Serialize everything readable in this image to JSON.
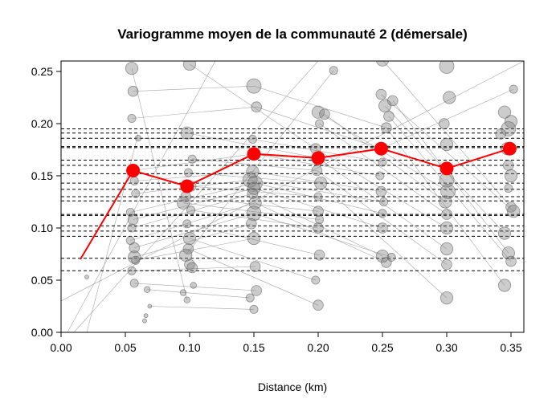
{
  "chart_data": {
    "type": "scatter",
    "title": "Variogramme moyen de la communauté 2 (démersale)",
    "xlabel": "Distance (km)",
    "ylabel": "",
    "xlim": [
      0.0,
      0.36
    ],
    "ylim": [
      0.0,
      0.26
    ],
    "x_ticks": [
      {
        "value": 0.0,
        "label": "0.00"
      },
      {
        "value": 0.05,
        "label": "0.05"
      },
      {
        "value": 0.1,
        "label": "0.10"
      },
      {
        "value": 0.15,
        "label": "0.15"
      },
      {
        "value": 0.2,
        "label": "0.20"
      },
      {
        "value": 0.25,
        "label": "0.25"
      },
      {
        "value": 0.3,
        "label": "0.30"
      },
      {
        "value": 0.35,
        "label": "0.35"
      }
    ],
    "y_ticks": [
      {
        "value": 0.0,
        "label": "0.00"
      },
      {
        "value": 0.05,
        "label": "0.05"
      },
      {
        "value": 0.1,
        "label": "0.10"
      },
      {
        "value": 0.15,
        "label": "0.15"
      },
      {
        "value": 0.2,
        "label": "0.20"
      },
      {
        "value": 0.25,
        "label": "0.25"
      }
    ],
    "colors": {
      "mean": "#ff0000",
      "points": "#808080",
      "lines": "#909090",
      "sills": "#000000"
    },
    "mean_variogram": {
      "name": "",
      "x": [
        0.015,
        0.056,
        0.098,
        0.15,
        0.2,
        0.249,
        0.3,
        0.349
      ],
      "y": [
        0.07,
        0.155,
        0.14,
        0.171,
        0.167,
        0.176,
        0.157,
        0.176
      ],
      "marker_sizes": [
        0,
        1,
        1,
        1,
        1,
        1,
        1,
        1
      ]
    },
    "sill_lines": [
      0.195,
      0.191,
      0.186,
      0.178,
      0.177,
      0.165,
      0.16,
      0.152,
      0.143,
      0.137,
      0.13,
      0.126,
      0.113,
      0.112,
      0.102,
      0.097,
      0.092,
      0.071,
      0.059
    ],
    "species_points": [
      {
        "x": 0.055,
        "y": 0.253,
        "s": 5
      },
      {
        "x": 0.056,
        "y": 0.231,
        "s": 4
      },
      {
        "x": 0.055,
        "y": 0.205,
        "s": 3
      },
      {
        "x": 0.06,
        "y": 0.186,
        "s": 2
      },
      {
        "x": 0.056,
        "y": 0.155,
        "s": 5
      },
      {
        "x": 0.057,
        "y": 0.145,
        "s": 3
      },
      {
        "x": 0.058,
        "y": 0.133,
        "s": 3
      },
      {
        "x": 0.054,
        "y": 0.115,
        "s": 3
      },
      {
        "x": 0.056,
        "y": 0.108,
        "s": 4
      },
      {
        "x": 0.055,
        "y": 0.1,
        "s": 3
      },
      {
        "x": 0.054,
        "y": 0.088,
        "s": 3
      },
      {
        "x": 0.057,
        "y": 0.081,
        "s": 4
      },
      {
        "x": 0.057,
        "y": 0.072,
        "s": 5
      },
      {
        "x": 0.058,
        "y": 0.069,
        "s": 3
      },
      {
        "x": 0.055,
        "y": 0.059,
        "s": 3
      },
      {
        "x": 0.057,
        "y": 0.047,
        "s": 3
      },
      {
        "x": 0.067,
        "y": 0.041,
        "s": 2
      },
      {
        "x": 0.069,
        "y": 0.025,
        "s": 1
      },
      {
        "x": 0.066,
        "y": 0.016,
        "s": 1
      },
      {
        "x": 0.065,
        "y": 0.011,
        "s": 1
      },
      {
        "x": 0.02,
        "y": 0.053,
        "s": 1
      },
      {
        "x": 0.1,
        "y": 0.257,
        "s": 5
      },
      {
        "x": 0.098,
        "y": 0.191,
        "s": 5
      },
      {
        "x": 0.102,
        "y": 0.166,
        "s": 3
      },
      {
        "x": 0.099,
        "y": 0.153,
        "s": 3
      },
      {
        "x": 0.101,
        "y": 0.14,
        "s": 4
      },
      {
        "x": 0.097,
        "y": 0.13,
        "s": 4
      },
      {
        "x": 0.095,
        "y": 0.124,
        "s": 5
      },
      {
        "x": 0.101,
        "y": 0.117,
        "s": 3
      },
      {
        "x": 0.098,
        "y": 0.104,
        "s": 3
      },
      {
        "x": 0.1,
        "y": 0.09,
        "s": 5
      },
      {
        "x": 0.099,
        "y": 0.08,
        "s": 4
      },
      {
        "x": 0.097,
        "y": 0.074,
        "s": 5
      },
      {
        "x": 0.1,
        "y": 0.065,
        "s": 4
      },
      {
        "x": 0.102,
        "y": 0.062,
        "s": 4
      },
      {
        "x": 0.103,
        "y": 0.045,
        "s": 2
      },
      {
        "x": 0.095,
        "y": 0.038,
        "s": 2
      },
      {
        "x": 0.098,
        "y": 0.031,
        "s": 2
      },
      {
        "x": 0.15,
        "y": 0.236,
        "s": 6
      },
      {
        "x": 0.152,
        "y": 0.216,
        "s": 4
      },
      {
        "x": 0.149,
        "y": 0.185,
        "s": 3
      },
      {
        "x": 0.15,
        "y": 0.171,
        "s": 4
      },
      {
        "x": 0.149,
        "y": 0.154,
        "s": 5
      },
      {
        "x": 0.147,
        "y": 0.146,
        "s": 6
      },
      {
        "x": 0.151,
        "y": 0.143,
        "s": 6
      },
      {
        "x": 0.15,
        "y": 0.138,
        "s": 5
      },
      {
        "x": 0.149,
        "y": 0.133,
        "s": 4
      },
      {
        "x": 0.151,
        "y": 0.124,
        "s": 5
      },
      {
        "x": 0.15,
        "y": 0.114,
        "s": 6
      },
      {
        "x": 0.148,
        "y": 0.104,
        "s": 4
      },
      {
        "x": 0.15,
        "y": 0.09,
        "s": 5
      },
      {
        "x": 0.151,
        "y": 0.063,
        "s": 4
      },
      {
        "x": 0.152,
        "y": 0.04,
        "s": 4
      },
      {
        "x": 0.147,
        "y": 0.033,
        "s": 3
      },
      {
        "x": 0.15,
        "y": 0.022,
        "s": 3
      },
      {
        "x": 0.2,
        "y": 0.211,
        "s": 5
      },
      {
        "x": 0.205,
        "y": 0.209,
        "s": 4
      },
      {
        "x": 0.201,
        "y": 0.2,
        "s": 3
      },
      {
        "x": 0.198,
        "y": 0.176,
        "s": 4
      },
      {
        "x": 0.2,
        "y": 0.167,
        "s": 5
      },
      {
        "x": 0.199,
        "y": 0.155,
        "s": 4
      },
      {
        "x": 0.202,
        "y": 0.143,
        "s": 5
      },
      {
        "x": 0.2,
        "y": 0.13,
        "s": 3
      },
      {
        "x": 0.2,
        "y": 0.116,
        "s": 4
      },
      {
        "x": 0.201,
        "y": 0.108,
        "s": 3
      },
      {
        "x": 0.2,
        "y": 0.1,
        "s": 4
      },
      {
        "x": 0.201,
        "y": 0.074,
        "s": 4
      },
      {
        "x": 0.198,
        "y": 0.05,
        "s": 3
      },
      {
        "x": 0.2,
        "y": 0.026,
        "s": 4
      },
      {
        "x": 0.212,
        "y": 0.251,
        "s": 3
      },
      {
        "x": 0.25,
        "y": 0.261,
        "s": 5
      },
      {
        "x": 0.249,
        "y": 0.228,
        "s": 4
      },
      {
        "x": 0.252,
        "y": 0.217,
        "s": 5
      },
      {
        "x": 0.258,
        "y": 0.222,
        "s": 4
      },
      {
        "x": 0.255,
        "y": 0.207,
        "s": 4
      },
      {
        "x": 0.253,
        "y": 0.196,
        "s": 4
      },
      {
        "x": 0.249,
        "y": 0.176,
        "s": 5
      },
      {
        "x": 0.25,
        "y": 0.163,
        "s": 3
      },
      {
        "x": 0.248,
        "y": 0.15,
        "s": 3
      },
      {
        "x": 0.249,
        "y": 0.135,
        "s": 4
      },
      {
        "x": 0.251,
        "y": 0.125,
        "s": 3
      },
      {
        "x": 0.25,
        "y": 0.114,
        "s": 3
      },
      {
        "x": 0.25,
        "y": 0.1,
        "s": 4
      },
      {
        "x": 0.25,
        "y": 0.073,
        "s": 5
      },
      {
        "x": 0.253,
        "y": 0.067,
        "s": 4
      },
      {
        "x": 0.257,
        "y": 0.072,
        "s": 3
      },
      {
        "x": 0.3,
        "y": 0.255,
        "s": 6
      },
      {
        "x": 0.302,
        "y": 0.225,
        "s": 5
      },
      {
        "x": 0.298,
        "y": 0.2,
        "s": 4
      },
      {
        "x": 0.3,
        "y": 0.18,
        "s": 5
      },
      {
        "x": 0.3,
        "y": 0.157,
        "s": 5
      },
      {
        "x": 0.3,
        "y": 0.146,
        "s": 6
      },
      {
        "x": 0.301,
        "y": 0.135,
        "s": 6
      },
      {
        "x": 0.299,
        "y": 0.125,
        "s": 5
      },
      {
        "x": 0.3,
        "y": 0.113,
        "s": 4
      },
      {
        "x": 0.3,
        "y": 0.1,
        "s": 5
      },
      {
        "x": 0.3,
        "y": 0.08,
        "s": 5
      },
      {
        "x": 0.3,
        "y": 0.065,
        "s": 4
      },
      {
        "x": 0.3,
        "y": 0.033,
        "s": 5
      },
      {
        "x": 0.345,
        "y": 0.211,
        "s": 5
      },
      {
        "x": 0.35,
        "y": 0.202,
        "s": 5
      },
      {
        "x": 0.348,
        "y": 0.195,
        "s": 6
      },
      {
        "x": 0.342,
        "y": 0.19,
        "s": 4
      },
      {
        "x": 0.347,
        "y": 0.176,
        "s": 5
      },
      {
        "x": 0.348,
        "y": 0.16,
        "s": 4
      },
      {
        "x": 0.35,
        "y": 0.15,
        "s": 5
      },
      {
        "x": 0.348,
        "y": 0.138,
        "s": 3
      },
      {
        "x": 0.35,
        "y": 0.12,
        "s": 4
      },
      {
        "x": 0.352,
        "y": 0.116,
        "s": 5
      },
      {
        "x": 0.345,
        "y": 0.095,
        "s": 5
      },
      {
        "x": 0.348,
        "y": 0.076,
        "s": 5
      },
      {
        "x": 0.35,
        "y": 0.068,
        "s": 4
      },
      {
        "x": 0.345,
        "y": 0.045,
        "s": 5
      },
      {
        "x": 0.352,
        "y": 0.233,
        "s": 3
      }
    ]
  }
}
